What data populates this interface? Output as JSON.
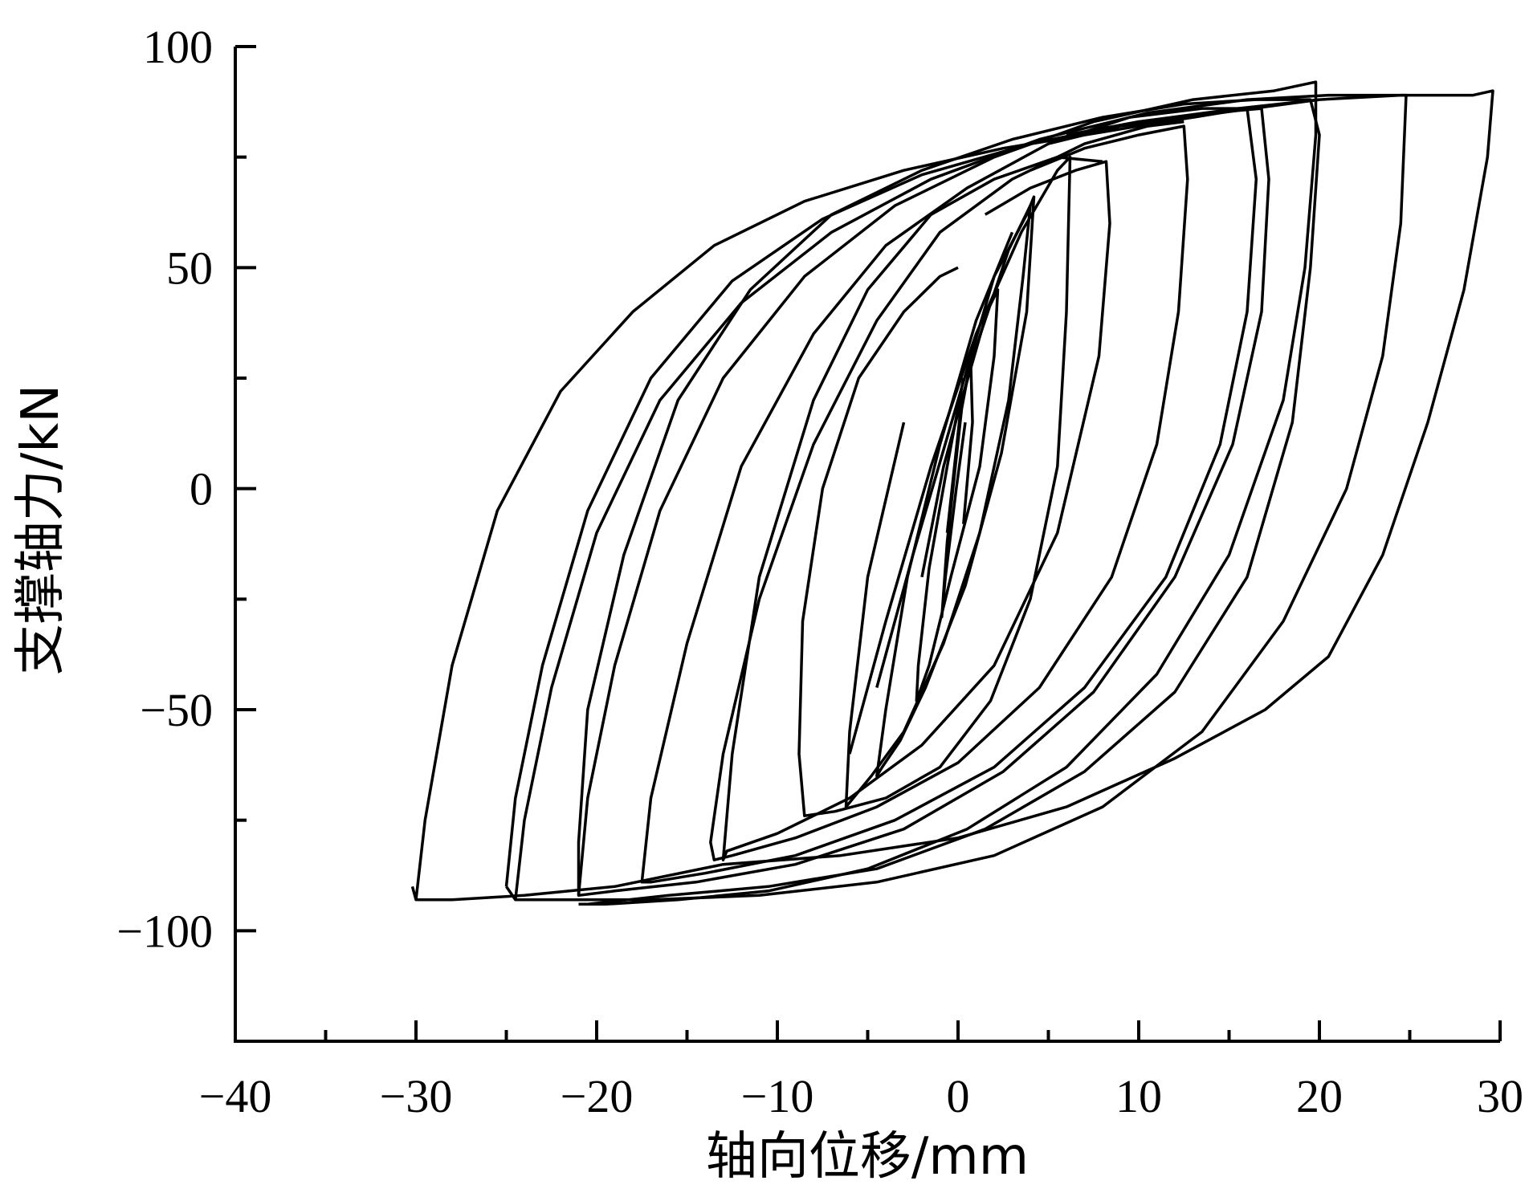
{
  "chart_data": {
    "type": "line",
    "title": "",
    "xlabel": "轴向位移/mm",
    "ylabel": "支撑轴力/kN",
    "xlim": [
      -40,
      30
    ],
    "ylim": [
      -125,
      100
    ],
    "x_ticks": [
      -40,
      -30,
      -20,
      -10,
      0,
      10,
      20,
      30
    ],
    "x_tick_labels": [
      "−40",
      "−30",
      "−20",
      "−10",
      "0",
      "10",
      "20",
      "30"
    ],
    "y_ticks": [
      -100,
      -50,
      0,
      50,
      100
    ],
    "y_tick_labels": [
      "−100",
      "−50",
      "0",
      "50",
      "100"
    ],
    "grid": false,
    "legend": "none",
    "series": [
      {
        "x": [
          0.3,
          0.8,
          0.7,
          0.2,
          -0.6,
          -0.9,
          -0.7,
          -0.1,
          0.4
        ],
        "y": [
          -8,
          15,
          29,
          18,
          -12,
          -29,
          -20,
          0,
          15
        ]
      },
      {
        "x": [
          -0.6,
          0.2,
          1.6,
          2.2,
          2.0,
          1.2,
          -0.4,
          -1.6,
          -2.3,
          -2.2,
          -1.6,
          -0.6,
          0.3
        ],
        "y": [
          -10,
          20,
          40,
          45,
          30,
          5,
          -20,
          -40,
          -48,
          -40,
          -18,
          5,
          25
        ]
      },
      {
        "x": [
          -2.0,
          -0.8,
          1.0,
          2.8,
          4.0,
          4.2,
          3.8,
          2.4,
          0.4,
          -1.8,
          -3.2,
          -4.2,
          -4.5,
          -4.0,
          -2.8,
          -1.0,
          1.0,
          3.0
        ],
        "y": [
          -20,
          5,
          32,
          54,
          64,
          66,
          40,
          8,
          -22,
          -45,
          -57,
          -63,
          -65,
          -50,
          -20,
          10,
          38,
          58
        ]
      },
      {
        "x": [
          -4.5,
          -2.5,
          0,
          2.0,
          3.8,
          4.0,
          3.6,
          2.8,
          1.2,
          -0.8,
          -3.0,
          -4.8,
          -5.8,
          -6.2,
          -6.0,
          -5.0,
          -3.0
        ],
        "y": [
          -45,
          -15,
          20,
          48,
          62,
          64,
          48,
          20,
          -10,
          -35,
          -55,
          -65,
          -70,
          -72,
          -55,
          -20,
          15
        ]
      },
      {
        "x": [
          -6.0,
          -4.0,
          -1.5,
          1.0,
          3.5,
          5.5,
          6.2,
          6.0,
          5.5,
          4.0,
          1.8,
          -1.0,
          -4.0,
          -6.8,
          -8.5,
          -8.8,
          -8.6,
          -7.5,
          -5.5,
          -3.0,
          -1.0,
          0.0
        ],
        "y": [
          -60,
          -30,
          5,
          35,
          58,
          72,
          75,
          40,
          5,
          -25,
          -48,
          -63,
          -70,
          -73,
          -74,
          -60,
          -30,
          0,
          25,
          40,
          48,
          50
        ]
      },
      {
        "x": [
          1.5,
          4.0,
          6.5,
          8.2,
          8.4,
          7.8,
          5.5,
          2.0,
          -2.0,
          -6.0,
          -10.0,
          -12.8,
          -13.0,
          -12.5,
          -11.0,
          -8.0,
          -5.0,
          -1.5,
          2.0,
          5.5,
          8.0
        ],
        "y": [
          62,
          68,
          72,
          74,
          60,
          30,
          -10,
          -40,
          -58,
          -70,
          -78,
          -82,
          -84,
          -60,
          -20,
          20,
          45,
          62,
          70,
          75,
          74
        ]
      },
      {
        "x": [
          4.0,
          7.0,
          10.0,
          12.5,
          12.7,
          12.2,
          11.0,
          8.5,
          4.5,
          0.0,
          -4.5,
          -9.0,
          -12.5,
          -13.5,
          -13.7,
          -13.0,
          -11.0,
          -8.0,
          -4.5,
          -1.0,
          3.0,
          7.0,
          10.5,
          12.5
        ],
        "y": [
          72,
          77,
          80,
          82,
          70,
          40,
          10,
          -20,
          -45,
          -62,
          -72,
          -79,
          -83,
          -84,
          -80,
          -60,
          -25,
          10,
          38,
          58,
          70,
          78,
          82,
          83
        ]
      },
      {
        "x": [
          5.0,
          9.0,
          13.0,
          16.0,
          16.5,
          16.0,
          14.5,
          11.5,
          7.0,
          2.0,
          -3.5,
          -9.0,
          -14.0,
          -17.0,
          -17.5,
          -17.0,
          -15.0,
          -12.0,
          -8.0,
          -4.0,
          0.5,
          5.0,
          9.5,
          13.5,
          16.0
        ],
        "y": [
          78,
          82,
          84,
          86,
          70,
          40,
          10,
          -20,
          -45,
          -63,
          -75,
          -83,
          -87,
          -89,
          -89,
          -70,
          -35,
          5,
          35,
          55,
          68,
          78,
          84,
          86,
          86
        ]
      },
      {
        "x": [
          6.0,
          10.0,
          14.0,
          16.8,
          17.2,
          16.8,
          15.2,
          12.0,
          7.5,
          2.5,
          -3.0,
          -9.0,
          -14.5,
          -19.0,
          -21.0,
          -21.0,
          -20.5,
          -18.5,
          -15.5,
          -11.5,
          -7.0,
          -2.0,
          3.0,
          8.0,
          12.5,
          16.5,
          19.5,
          20.0,
          19.5,
          18.5,
          16.0,
          12.0,
          7.0,
          1.5,
          -4.5,
          -10.5,
          -16.0,
          -20.5,
          -21.0
        ],
        "y": [
          80,
          83,
          85,
          86,
          70,
          40,
          10,
          -20,
          -46,
          -64,
          -77,
          -85,
          -89,
          -91,
          -92,
          -80,
          -50,
          -15,
          20,
          45,
          62,
          72,
          79,
          84,
          87,
          88,
          88,
          80,
          50,
          15,
          -20,
          -46,
          -64,
          -77,
          -86,
          -90,
          -92,
          -94,
          -94
        ]
      },
      {
        "x": [
          -21.0,
          -20.5,
          -19.0,
          -16.5,
          -13.0,
          -8.5,
          -3.5,
          2.0,
          7.5,
          13.0,
          17.5,
          19.8,
          19.8,
          19.2,
          18.0,
          15.0,
          11.0,
          6.0,
          0.5,
          -5.0,
          -10.5,
          -15.5,
          -19.5,
          -21.0
        ],
        "y": [
          -92,
          -70,
          -40,
          -5,
          25,
          48,
          64,
          75,
          83,
          88,
          90,
          92,
          80,
          50,
          20,
          -15,
          -42,
          -63,
          -77,
          -86,
          -91,
          -93,
          -94,
          -94
        ]
      },
      {
        "x": [
          -24.5,
          -24.0,
          -22.5,
          -20.0,
          -16.5,
          -12.0,
          -7.0,
          -1.5,
          4.5,
          10.5,
          16.0,
          20.5,
          24.0,
          24.8,
          24.5,
          23.5,
          21.5,
          18.0,
          13.5,
          8.0,
          2.0,
          -4.5,
          -11.0,
          -17.0,
          -21.5,
          -24.5,
          -25.0
        ],
        "y": [
          -93,
          -75,
          -45,
          -10,
          20,
          42,
          58,
          70,
          79,
          85,
          88,
          89,
          89,
          89,
          60,
          30,
          0,
          -30,
          -55,
          -72,
          -83,
          -89,
          -92,
          -93,
          -93,
          -93,
          -90
        ]
      },
      {
        "x": [
          -25.0,
          -24.5,
          -23.0,
          -20.5,
          -17.0,
          -12.5,
          -7.5,
          -2.0,
          4.0,
          10.0,
          15.5,
          20.0
        ],
        "y": [
          -90,
          -70,
          -40,
          -5,
          25,
          47,
          61,
          71,
          78,
          83,
          86,
          88
        ]
      },
      {
        "x": [
          -30.0,
          -29.5,
          -28.0,
          -25.5,
          -22.0,
          -18.0,
          -13.5,
          -8.5,
          -3.0,
          2.5,
          8.5,
          14.5,
          20.0,
          24.5,
          28.5,
          29.6,
          29.3,
          28.0,
          26.0,
          23.5,
          20.5,
          17.0,
          12.0,
          6.0,
          0.0,
          -6.5,
          -13.0,
          -19.0,
          -24.0,
          -28.0,
          -30.0,
          -30.2
        ],
        "y": [
          -93,
          -75,
          -40,
          -5,
          22,
          40,
          55,
          65,
          72,
          77,
          81,
          85,
          88,
          89,
          89,
          90,
          75,
          45,
          15,
          -15,
          -38,
          -50,
          -61,
          -72,
          -79,
          -83,
          -85,
          -90,
          -92,
          -93,
          -93,
          -90
        ]
      }
    ]
  }
}
